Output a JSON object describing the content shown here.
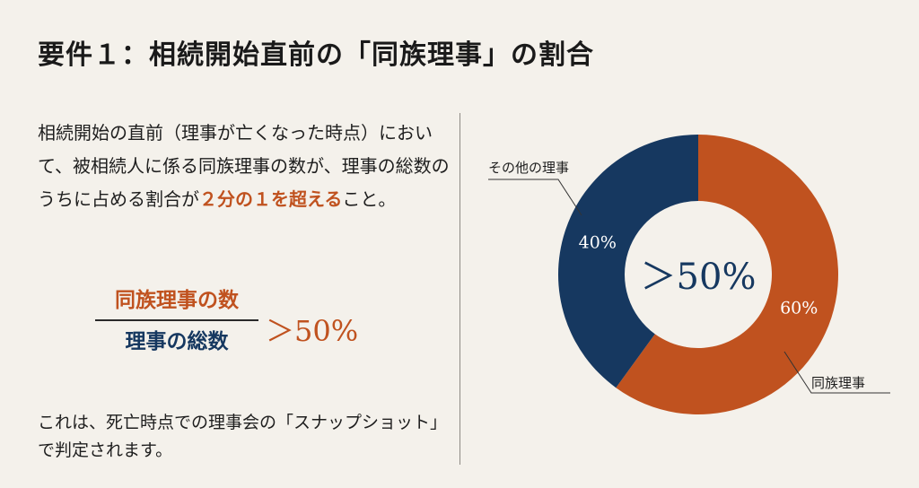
{
  "header": {
    "title": "要件１：相続開始直前の「同族理事」の割合"
  },
  "description": {
    "before": "相続開始の直前（理事が亡くなった時点）において、被相続人に係る同族理事の数が、理事の総数のうちに占める割合が",
    "emphasis": "２分の１を超える",
    "after": "こと。"
  },
  "formula": {
    "numerator": "同族理事の数",
    "denominator": "理事の総数",
    "ratio": "＞50%"
  },
  "note": "これは、死亡時点での理事会の「スナップショット」で判定されます。",
  "chart_data": {
    "type": "pie",
    "donut": true,
    "center_label": "＞50%",
    "slices": [
      {
        "label": "同族理事",
        "value": 60,
        "value_label": "60%",
        "color": "#c0521f"
      },
      {
        "label": "その他の理事",
        "value": 40,
        "value_label": "40%",
        "color": "#163860"
      }
    ]
  },
  "colors": {
    "accent_orange": "#c0521f",
    "accent_navy": "#163860",
    "background": "#f4f1eb"
  }
}
